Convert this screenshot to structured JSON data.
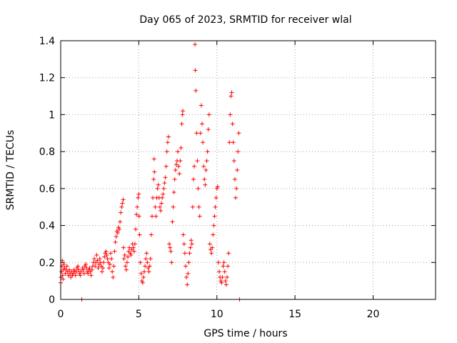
{
  "chart_data": {
    "type": "scatter",
    "title": "Day 065 of 2023, SRMTID for receiver wlal",
    "xlabel": "GPS time / hours",
    "ylabel": "SRMTID / TECUs",
    "xlim": [
      0,
      24
    ],
    "ylim": [
      0,
      1.4
    ],
    "xticks": [
      0,
      5,
      10,
      15,
      20
    ],
    "xtick_labels": [
      "0",
      "5",
      "10",
      "15",
      "20"
    ],
    "yticks": [
      0,
      0.2,
      0.4,
      0.6,
      0.8,
      1.0,
      1.2,
      1.4
    ],
    "ytick_labels": [
      "0",
      "0.2",
      "0.4",
      "0.6",
      "0.8",
      "1",
      "1.2",
      "1.4"
    ],
    "grid": true,
    "marker": "+",
    "color": "#ff0000",
    "series": [
      {
        "name": "SRMTID",
        "points": [
          [
            0.0,
            0.09
          ],
          [
            0.02,
            0.12
          ],
          [
            0.05,
            0.15
          ],
          [
            0.08,
            0.18
          ],
          [
            0.1,
            0.21
          ],
          [
            0.12,
            0.13
          ],
          [
            0.15,
            0.11
          ],
          [
            0.18,
            0.16
          ],
          [
            0.2,
            0.19
          ],
          [
            0.25,
            0.17
          ],
          [
            0.3,
            0.14
          ],
          [
            0.35,
            0.16
          ],
          [
            0.4,
            0.18
          ],
          [
            0.45,
            0.15
          ],
          [
            0.5,
            0.13
          ],
          [
            0.55,
            0.16
          ],
          [
            0.6,
            0.14
          ],
          [
            0.65,
            0.12
          ],
          [
            0.7,
            0.15
          ],
          [
            0.75,
            0.13
          ],
          [
            0.8,
            0.14
          ],
          [
            0.85,
            0.16
          ],
          [
            0.9,
            0.15
          ],
          [
            0.95,
            0.13
          ],
          [
            1.0,
            0.15
          ],
          [
            1.05,
            0.17
          ],
          [
            1.1,
            0.18
          ],
          [
            1.15,
            0.16
          ],
          [
            1.2,
            0.14
          ],
          [
            1.25,
            0.13
          ],
          [
            1.3,
            0.15
          ],
          [
            1.35,
            0.0
          ],
          [
            1.4,
            0.17
          ],
          [
            1.45,
            0.16
          ],
          [
            1.5,
            0.14
          ],
          [
            1.55,
            0.18
          ],
          [
            1.6,
            0.19
          ],
          [
            1.65,
            0.17
          ],
          [
            1.7,
            0.15
          ],
          [
            1.75,
            0.14
          ],
          [
            1.8,
            0.16
          ],
          [
            1.85,
            0.17
          ],
          [
            1.9,
            0.15
          ],
          [
            1.95,
            0.13
          ],
          [
            2.0,
            0.16
          ],
          [
            2.05,
            0.18
          ],
          [
            2.1,
            0.2
          ],
          [
            2.15,
            0.22
          ],
          [
            2.2,
            0.18
          ],
          [
            2.25,
            0.2
          ],
          [
            2.3,
            0.24
          ],
          [
            2.35,
            0.21
          ],
          [
            2.4,
            0.17
          ],
          [
            2.45,
            0.19
          ],
          [
            2.5,
            0.22
          ],
          [
            2.55,
            0.2
          ],
          [
            2.6,
            0.18
          ],
          [
            2.65,
            0.15
          ],
          [
            2.7,
            0.17
          ],
          [
            2.75,
            0.2
          ],
          [
            2.8,
            0.23
          ],
          [
            2.85,
            0.25
          ],
          [
            2.9,
            0.26
          ],
          [
            2.95,
            0.24
          ],
          [
            3.0,
            0.22
          ],
          [
            3.05,
            0.2
          ],
          [
            3.1,
            0.17
          ],
          [
            3.15,
            0.19
          ],
          [
            3.2,
            0.25
          ],
          [
            3.25,
            0.22
          ],
          [
            3.3,
            0.15
          ],
          [
            3.35,
            0.12
          ],
          [
            3.4,
            0.18
          ],
          [
            3.45,
            0.26
          ],
          [
            3.5,
            0.31
          ],
          [
            3.55,
            0.34
          ],
          [
            3.6,
            0.37
          ],
          [
            3.65,
            0.36
          ],
          [
            3.7,
            0.39
          ],
          [
            3.75,
            0.38
          ],
          [
            3.8,
            0.42
          ],
          [
            3.85,
            0.47
          ],
          [
            3.9,
            0.5
          ],
          [
            3.95,
            0.52
          ],
          [
            4.0,
            0.54
          ],
          [
            4.02,
            0.28
          ],
          [
            4.05,
            0.22
          ],
          [
            4.1,
            0.24
          ],
          [
            4.15,
            0.18
          ],
          [
            4.2,
            0.16
          ],
          [
            4.25,
            0.2
          ],
          [
            4.3,
            0.23
          ],
          [
            4.35,
            0.26
          ],
          [
            4.4,
            0.28
          ],
          [
            4.45,
            0.25
          ],
          [
            4.5,
            0.24
          ],
          [
            4.55,
            0.27
          ],
          [
            4.6,
            0.3
          ],
          [
            4.65,
            0.28
          ],
          [
            4.7,
            0.26
          ],
          [
            4.75,
            0.3
          ],
          [
            4.8,
            0.38
          ],
          [
            4.85,
            0.46
          ],
          [
            4.9,
            0.5
          ],
          [
            4.95,
            0.55
          ],
          [
            5.0,
            0.57
          ],
          [
            5.02,
            0.45
          ],
          [
            5.05,
            0.35
          ],
          [
            5.1,
            0.2
          ],
          [
            5.15,
            0.14
          ],
          [
            5.2,
            0.1
          ],
          [
            5.25,
            0.09
          ],
          [
            5.3,
            0.12
          ],
          [
            5.35,
            0.15
          ],
          [
            5.4,
            0.18
          ],
          [
            5.45,
            0.22
          ],
          [
            5.5,
            0.25
          ],
          [
            5.55,
            0.2
          ],
          [
            5.6,
            0.17
          ],
          [
            5.65,
            0.15
          ],
          [
            5.7,
            0.18
          ],
          [
            5.75,
            0.22
          ],
          [
            5.8,
            0.35
          ],
          [
            5.85,
            0.45
          ],
          [
            5.9,
            0.55
          ],
          [
            5.95,
            0.65
          ],
          [
            5.98,
            0.76
          ],
          [
            6.0,
            0.69
          ],
          [
            6.05,
            0.5
          ],
          [
            6.1,
            0.45
          ],
          [
            6.15,
            0.55
          ],
          [
            6.2,
            0.6
          ],
          [
            6.25,
            0.62
          ],
          [
            6.3,
            0.55
          ],
          [
            6.35,
            0.5
          ],
          [
            6.4,
            0.48
          ],
          [
            6.45,
            0.52
          ],
          [
            6.5,
            0.55
          ],
          [
            6.55,
            0.57
          ],
          [
            6.6,
            0.6
          ],
          [
            6.65,
            0.63
          ],
          [
            6.7,
            0.66
          ],
          [
            6.75,
            0.72
          ],
          [
            6.8,
            0.8
          ],
          [
            6.85,
            0.85
          ],
          [
            6.9,
            0.88
          ],
          [
            6.95,
            0.3
          ],
          [
            7.0,
            0.28
          ],
          [
            7.05,
            0.26
          ],
          [
            7.1,
            0.2
          ],
          [
            7.15,
            0.42
          ],
          [
            7.2,
            0.5
          ],
          [
            7.25,
            0.58
          ],
          [
            7.3,
            0.65
          ],
          [
            7.35,
            0.7
          ],
          [
            7.4,
            0.73
          ],
          [
            7.45,
            0.75
          ],
          [
            7.5,
            0.8
          ],
          [
            7.55,
            0.72
          ],
          [
            7.6,
            0.68
          ],
          [
            7.65,
            0.75
          ],
          [
            7.7,
            0.82
          ],
          [
            7.75,
            0.95
          ],
          [
            7.8,
            1.0
          ],
          [
            7.82,
            1.02
          ],
          [
            7.85,
            0.35
          ],
          [
            7.9,
            0.3
          ],
          [
            7.95,
            0.25
          ],
          [
            8.0,
            0.18
          ],
          [
            8.05,
            0.12
          ],
          [
            8.1,
            0.08
          ],
          [
            8.15,
            0.14
          ],
          [
            8.2,
            0.2
          ],
          [
            8.25,
            0.25
          ],
          [
            8.3,
            0.28
          ],
          [
            8.35,
            0.32
          ],
          [
            8.4,
            0.3
          ],
          [
            8.45,
            0.5
          ],
          [
            8.5,
            0.65
          ],
          [
            8.55,
            0.72
          ],
          [
            8.6,
            1.38
          ],
          [
            8.62,
            1.24
          ],
          [
            8.65,
            1.13
          ],
          [
            8.7,
            0.9
          ],
          [
            8.75,
            0.75
          ],
          [
            8.8,
            0.6
          ],
          [
            8.85,
            0.5
          ],
          [
            8.9,
            0.45
          ],
          [
            8.95,
            0.9
          ],
          [
            9.0,
            1.05
          ],
          [
            9.05,
            0.95
          ],
          [
            9.1,
            0.85
          ],
          [
            9.15,
            0.72
          ],
          [
            9.2,
            0.65
          ],
          [
            9.25,
            0.62
          ],
          [
            9.3,
            0.7
          ],
          [
            9.35,
            0.75
          ],
          [
            9.4,
            0.8
          ],
          [
            9.45,
            0.92
          ],
          [
            9.5,
            1.0
          ],
          [
            9.55,
            0.3
          ],
          [
            9.6,
            0.27
          ],
          [
            9.65,
            0.25
          ],
          [
            9.7,
            0.28
          ],
          [
            9.75,
            0.35
          ],
          [
            9.8,
            0.4
          ],
          [
            9.85,
            0.45
          ],
          [
            9.9,
            0.5
          ],
          [
            9.95,
            0.55
          ],
          [
            10.0,
            0.6
          ],
          [
            10.05,
            0.61
          ],
          [
            10.1,
            0.2
          ],
          [
            10.15,
            0.15
          ],
          [
            10.2,
            0.12
          ],
          [
            10.25,
            0.1
          ],
          [
            10.3,
            0.09
          ],
          [
            10.35,
            0.12
          ],
          [
            10.4,
            0.18
          ],
          [
            10.45,
            0.2
          ],
          [
            10.5,
            0.15
          ],
          [
            10.55,
            0.1
          ],
          [
            10.6,
            0.08
          ],
          [
            10.65,
            0.12
          ],
          [
            10.7,
            0.18
          ],
          [
            10.75,
            0.25
          ],
          [
            10.8,
            0.85
          ],
          [
            10.85,
            1.0
          ],
          [
            10.9,
            1.1
          ],
          [
            10.95,
            1.12
          ],
          [
            11.0,
            0.95
          ],
          [
            11.05,
            0.85
          ],
          [
            11.1,
            0.75
          ],
          [
            11.15,
            0.65
          ],
          [
            11.2,
            0.55
          ],
          [
            11.25,
            0.6
          ],
          [
            11.3,
            0.7
          ],
          [
            11.35,
            0.8
          ],
          [
            11.4,
            0.9
          ],
          [
            11.45,
            0.0
          ]
        ]
      }
    ]
  }
}
